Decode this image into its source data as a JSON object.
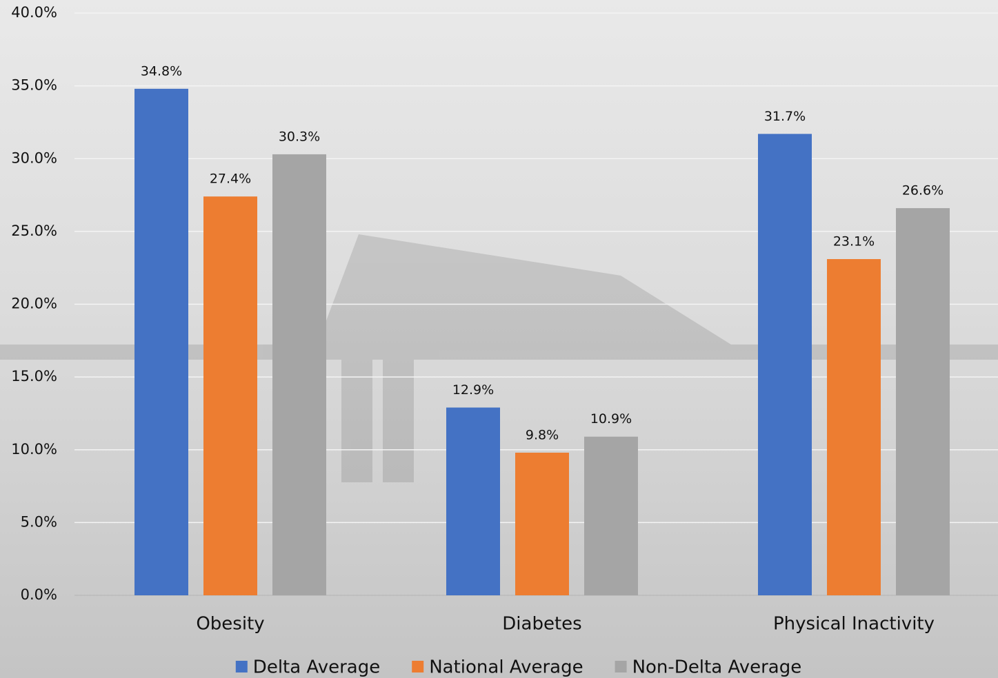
{
  "chart_data": {
    "type": "bar",
    "categories": [
      "Obesity",
      "Diabetes",
      "Physical Inactivity"
    ],
    "series": [
      {
        "name": "Delta Average",
        "color": "#4472c4",
        "values": [
          34.8,
          12.9,
          31.7
        ],
        "value_labels": [
          "34.8%",
          "12.9%",
          "31.7%"
        ]
      },
      {
        "name": "National Average",
        "color": "#ed7d31",
        "values": [
          27.4,
          9.8,
          23.1
        ],
        "value_labels": [
          "27.4%",
          "9.8%",
          "23.1%"
        ]
      },
      {
        "name": "Non-Delta Average",
        "color": "#a5a5a5",
        "values": [
          30.3,
          10.9,
          26.6
        ],
        "value_labels": [
          "30.3%",
          "10.9%",
          "26.6%"
        ]
      }
    ],
    "ylim": [
      0,
      40
    ],
    "yticks": [
      {
        "value": 0,
        "label": "0.0%"
      },
      {
        "value": 5,
        "label": "5.0%"
      },
      {
        "value": 10,
        "label": "10.0%"
      },
      {
        "value": 15,
        "label": "15.0%"
      },
      {
        "value": 20,
        "label": "20.0%"
      },
      {
        "value": 25,
        "label": "25.0%"
      },
      {
        "value": 30,
        "label": "30.0%"
      },
      {
        "value": 35,
        "label": "35.0%"
      },
      {
        "value": 40,
        "label": "40.0%"
      }
    ],
    "grid": true,
    "legend": "bottom"
  }
}
